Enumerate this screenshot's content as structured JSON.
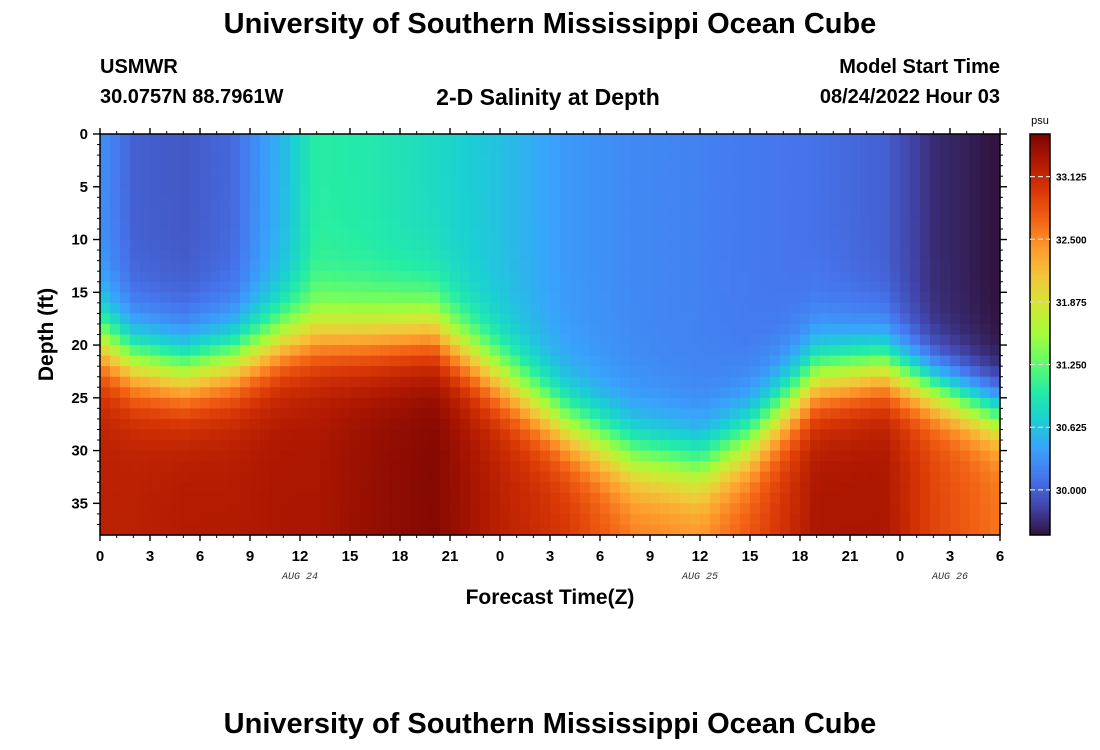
{
  "header": {
    "title": "University of Southern Mississippi Ocean Cube",
    "station": "USMWR",
    "coords": "30.0757N  88.7961W",
    "subtitle": "2-D Salinity at Depth",
    "model_start_label": "Model Start Time",
    "model_start_value": "08/24/2022 Hour 03"
  },
  "footer": {
    "title": "University of Southern Mississippi Ocean Cube"
  },
  "chart_data": {
    "type": "heatmap",
    "title": "2-D Salinity at Depth",
    "xlabel": "Forecast Time(Z)",
    "ylabel": "Depth (ft)",
    "x_range_hours": [
      0,
      54
    ],
    "y_range_ft": [
      0,
      38
    ],
    "x_ticks": [
      {
        "h": 0,
        "label": "0"
      },
      {
        "h": 3,
        "label": "3"
      },
      {
        "h": 6,
        "label": "6"
      },
      {
        "h": 9,
        "label": "9"
      },
      {
        "h": 12,
        "label": "12"
      },
      {
        "h": 15,
        "label": "15"
      },
      {
        "h": 18,
        "label": "18"
      },
      {
        "h": 21,
        "label": "21"
      },
      {
        "h": 24,
        "label": "0"
      },
      {
        "h": 27,
        "label": "3"
      },
      {
        "h": 30,
        "label": "6"
      },
      {
        "h": 33,
        "label": "9"
      },
      {
        "h": 36,
        "label": "12"
      },
      {
        "h": 39,
        "label": "15"
      },
      {
        "h": 42,
        "label": "18"
      },
      {
        "h": 45,
        "label": "21"
      },
      {
        "h": 48,
        "label": "0"
      },
      {
        "h": 51,
        "label": "3"
      },
      {
        "h": 54,
        "label": "6"
      }
    ],
    "date_labels": [
      {
        "h": 12,
        "label": "AUG 24"
      },
      {
        "h": 36,
        "label": "AUG 25"
      },
      {
        "h": 51,
        "label": "AUG 26"
      }
    ],
    "y_ticks": [
      0,
      5,
      10,
      15,
      20,
      25,
      30,
      35
    ],
    "colorbar": {
      "unit": "psu",
      "min": 29.55,
      "max": 33.55,
      "ticks": [
        "33.125",
        "32.500",
        "31.875",
        "31.250",
        "30.625",
        "30.000"
      ],
      "colors": [
        "#30123b",
        "#4145ab",
        "#4675ed",
        "#39a2fc",
        "#1bcfd4",
        "#24eca6",
        "#61fc6c",
        "#a4fc3b",
        "#d1e834",
        "#f3c63a",
        "#fe9b2d",
        "#f36315",
        "#d93806",
        "#b11901",
        "#7a0402"
      ]
    },
    "profile_description": "Salinity low (~29.9-30.5 psu) near surface, high (~33-33.5 psu) near bottom; halocline depth varies with time",
    "time_nodes_hours": [
      0,
      2,
      5,
      8,
      11,
      13,
      16,
      20,
      24,
      28,
      32,
      36,
      39,
      43,
      47,
      50,
      54
    ],
    "surface_salinity_psu": [
      30.3,
      30.0,
      29.95,
      30.05,
      30.55,
      31.0,
      30.95,
      30.8,
      30.6,
      30.35,
      30.25,
      30.2,
      30.15,
      30.1,
      30.0,
      29.7,
      29.55
    ],
    "bottom_salinity_psu": [
      33.2,
      33.2,
      33.25,
      33.25,
      33.3,
      33.3,
      33.4,
      33.5,
      33.2,
      33.0,
      32.6,
      32.5,
      32.8,
      33.3,
      33.3,
      32.9,
      32.6
    ],
    "halocline_depth_ft": [
      19.5,
      21.5,
      22.5,
      21.5,
      19.5,
      19.0,
      19.0,
      18.5,
      23.0,
      27.5,
      30.5,
      31.5,
      29.0,
      23.0,
      22.0,
      24.0,
      26.5
    ],
    "halocline_thickness_ft": [
      5,
      5,
      5,
      5,
      5,
      5,
      5,
      5,
      5,
      5,
      5,
      5,
      5,
      5,
      4.5,
      4,
      4
    ]
  }
}
